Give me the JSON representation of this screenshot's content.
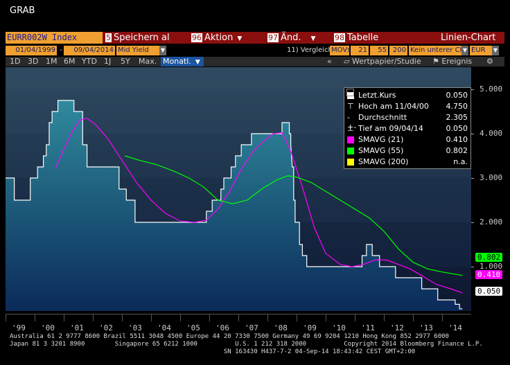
{
  "window_title": "GRAB",
  "security": "EURR002W Index",
  "menu": [
    {
      "num": "5",
      "label": "Speichern al"
    },
    {
      "num": "96",
      "label": "Aktion"
    },
    {
      "num": "97",
      "label": "Änd."
    },
    {
      "num": "98",
      "label": "Tabelle"
    }
  ],
  "chart_type": "Linien-Chart",
  "range": {
    "start": "01/04/1999",
    "end": "09/04/2014",
    "field": "Mid Yield"
  },
  "compare_label": "11) Vergleich",
  "mavs_label": "MOVs",
  "mavs": [
    "21",
    "55",
    "200"
  ],
  "lower_limit": "Kein unterer Cha",
  "currency": "EUR",
  "periods": [
    "1D",
    "3D",
    "1M",
    "6M",
    "YTD",
    "1J",
    "5Y",
    "Max."
  ],
  "frequency": "Monatl.",
  "right_tools": [
    "Wertpapier/Studie",
    "Ereignis"
  ],
  "legend": {
    "rows": [
      {
        "label": "Letzt.Kurs",
        "value": "0.050",
        "color": "#ffffff",
        "kind": "swatch"
      },
      {
        "label": "Hoch am 11/04/00",
        "value": "4.750",
        "kind": "high"
      },
      {
        "label": "Durchschnitt",
        "value": "2.305",
        "kind": "avg"
      },
      {
        "label": "Tief am 09/04/14",
        "value": "0.050",
        "kind": "low"
      },
      {
        "label": "SMAVG (21)",
        "value": "0.410",
        "color": "#ff00ff",
        "kind": "swatch"
      },
      {
        "label": "SMAVG (55)",
        "value": "0.802",
        "color": "#00ff00",
        "kind": "swatch"
      },
      {
        "label": "SMAVG (200)",
        "value": "n.a.",
        "color": "#ffff00",
        "kind": "swatch"
      }
    ]
  },
  "tags": {
    "sma55": "0.802",
    "sma21": "0.410",
    "last": "0.050"
  },
  "chart_data": {
    "type": "line",
    "ylim": [
      0,
      5.5
    ],
    "yticks": [
      "1.000",
      "2.000",
      "3.000",
      "4.000",
      "5.000"
    ],
    "x_labels": [
      "'99",
      "'00",
      "'01",
      "'02",
      "'03",
      "'04",
      "'05",
      "'06",
      "'07",
      "'08",
      "'09",
      "'10",
      "'11",
      "'12",
      "'13",
      "'14"
    ],
    "x_start": 1999.0,
    "x_end": 2015.0,
    "series": [
      {
        "name": "Letzt.Kurs",
        "color": "#ffffff",
        "points": [
          [
            1999.0,
            3.0
          ],
          [
            1999.3,
            3.0
          ],
          [
            1999.3,
            2.5
          ],
          [
            1999.85,
            2.5
          ],
          [
            1999.85,
            3.0
          ],
          [
            2000.1,
            3.0
          ],
          [
            2000.1,
            3.25
          ],
          [
            2000.3,
            3.25
          ],
          [
            2000.3,
            3.5
          ],
          [
            2000.4,
            3.5
          ],
          [
            2000.4,
            3.75
          ],
          [
            2000.5,
            3.75
          ],
          [
            2000.5,
            4.25
          ],
          [
            2000.6,
            4.25
          ],
          [
            2000.6,
            4.5
          ],
          [
            2000.8,
            4.5
          ],
          [
            2000.8,
            4.75
          ],
          [
            2001.35,
            4.75
          ],
          [
            2001.35,
            4.5
          ],
          [
            2001.65,
            4.5
          ],
          [
            2001.65,
            3.75
          ],
          [
            2001.8,
            3.75
          ],
          [
            2001.8,
            3.25
          ],
          [
            2002.9,
            3.25
          ],
          [
            2002.9,
            2.75
          ],
          [
            2003.15,
            2.75
          ],
          [
            2003.15,
            2.5
          ],
          [
            2003.45,
            2.5
          ],
          [
            2003.45,
            2.0
          ],
          [
            2005.9,
            2.0
          ],
          [
            2005.9,
            2.25
          ],
          [
            2006.1,
            2.25
          ],
          [
            2006.1,
            2.5
          ],
          [
            2006.4,
            2.5
          ],
          [
            2006.4,
            2.75
          ],
          [
            2006.5,
            2.75
          ],
          [
            2006.5,
            3.0
          ],
          [
            2006.75,
            3.0
          ],
          [
            2006.75,
            3.25
          ],
          [
            2006.9,
            3.25
          ],
          [
            2006.9,
            3.5
          ],
          [
            2007.1,
            3.5
          ],
          [
            2007.1,
            3.75
          ],
          [
            2007.45,
            3.75
          ],
          [
            2007.45,
            4.0
          ],
          [
            2008.5,
            4.0
          ],
          [
            2008.5,
            4.25
          ],
          [
            2008.75,
            4.25
          ],
          [
            2008.75,
            4.0
          ],
          [
            2008.8,
            4.0
          ],
          [
            2008.8,
            3.75
          ],
          [
            2008.85,
            3.25
          ],
          [
            2008.9,
            3.25
          ],
          [
            2008.9,
            2.5
          ],
          [
            2008.95,
            2.5
          ],
          [
            2008.95,
            2.0
          ],
          [
            2009.1,
            2.0
          ],
          [
            2009.1,
            1.5
          ],
          [
            2009.2,
            1.5
          ],
          [
            2009.2,
            1.25
          ],
          [
            2009.35,
            1.25
          ],
          [
            2009.35,
            1.0
          ],
          [
            2011.25,
            1.0
          ],
          [
            2011.25,
            1.25
          ],
          [
            2011.4,
            1.25
          ],
          [
            2011.4,
            1.5
          ],
          [
            2011.6,
            1.5
          ],
          [
            2011.6,
            1.25
          ],
          [
            2011.85,
            1.25
          ],
          [
            2011.85,
            1.0
          ],
          [
            2012.4,
            1.0
          ],
          [
            2012.4,
            0.75
          ],
          [
            2013.3,
            0.75
          ],
          [
            2013.3,
            0.5
          ],
          [
            2013.85,
            0.5
          ],
          [
            2013.85,
            0.25
          ],
          [
            2014.45,
            0.25
          ],
          [
            2014.45,
            0.15
          ],
          [
            2014.6,
            0.15
          ],
          [
            2014.6,
            0.05
          ],
          [
            2014.7,
            0.05
          ]
        ]
      },
      {
        "name": "SMAVG (21)",
        "color": "#ff00ff",
        "points": [
          [
            2000.7,
            3.2
          ],
          [
            2001.0,
            3.65
          ],
          [
            2001.3,
            4.05
          ],
          [
            2001.55,
            4.3
          ],
          [
            2001.8,
            4.35
          ],
          [
            2002.1,
            4.2
          ],
          [
            2002.5,
            3.9
          ],
          [
            2003.0,
            3.4
          ],
          [
            2003.5,
            2.9
          ],
          [
            2004.0,
            2.5
          ],
          [
            2004.5,
            2.2
          ],
          [
            2005.0,
            2.03
          ],
          [
            2005.5,
            2.0
          ],
          [
            2005.9,
            2.05
          ],
          [
            2006.3,
            2.3
          ],
          [
            2006.7,
            2.7
          ],
          [
            2007.1,
            3.2
          ],
          [
            2007.5,
            3.6
          ],
          [
            2007.9,
            3.85
          ],
          [
            2008.2,
            4.0
          ],
          [
            2008.5,
            4.02
          ],
          [
            2008.8,
            3.6
          ],
          [
            2009.2,
            2.8
          ],
          [
            2009.6,
            1.9
          ],
          [
            2010.0,
            1.3
          ],
          [
            2010.5,
            1.05
          ],
          [
            2010.9,
            1.0
          ],
          [
            2011.3,
            1.05
          ],
          [
            2011.7,
            1.15
          ],
          [
            2012.1,
            1.15
          ],
          [
            2012.5,
            1.05
          ],
          [
            2012.9,
            0.95
          ],
          [
            2013.3,
            0.8
          ],
          [
            2013.8,
            0.6
          ],
          [
            2014.3,
            0.5
          ],
          [
            2014.7,
            0.41
          ]
        ]
      },
      {
        "name": "SMAVG (55)",
        "color": "#00ff00",
        "points": [
          [
            2003.1,
            3.5
          ],
          [
            2003.6,
            3.4
          ],
          [
            2004.2,
            3.3
          ],
          [
            2004.8,
            3.15
          ],
          [
            2005.3,
            3.0
          ],
          [
            2005.8,
            2.8
          ],
          [
            2006.3,
            2.5
          ],
          [
            2006.8,
            2.42
          ],
          [
            2007.3,
            2.5
          ],
          [
            2007.8,
            2.75
          ],
          [
            2008.3,
            2.95
          ],
          [
            2008.7,
            3.05
          ],
          [
            2009.0,
            3.02
          ],
          [
            2009.5,
            2.9
          ],
          [
            2010.0,
            2.7
          ],
          [
            2010.5,
            2.5
          ],
          [
            2011.0,
            2.3
          ],
          [
            2011.5,
            2.1
          ],
          [
            2012.0,
            1.8
          ],
          [
            2012.5,
            1.4
          ],
          [
            2013.0,
            1.1
          ],
          [
            2013.5,
            0.95
          ],
          [
            2014.0,
            0.88
          ],
          [
            2014.7,
            0.802
          ]
        ]
      }
    ]
  },
  "footer": [
    "Australia 61 2 9777 8600 Brazil 5511 3048 4500 Europe 44 20 7330 7500 Germany 49 69 9204 1210 Hong Kong 852 2977 6000",
    "Japan 81 3 3201 8900        Singapore 65 6212 1000          U.S. 1 212 318 2000          Copyright 2014 Bloomberg Finance L.P.",
    "                                                         SN 163430 H437-7-2 04-Sep-14 18:43:42 CEST GMT+2:00"
  ]
}
